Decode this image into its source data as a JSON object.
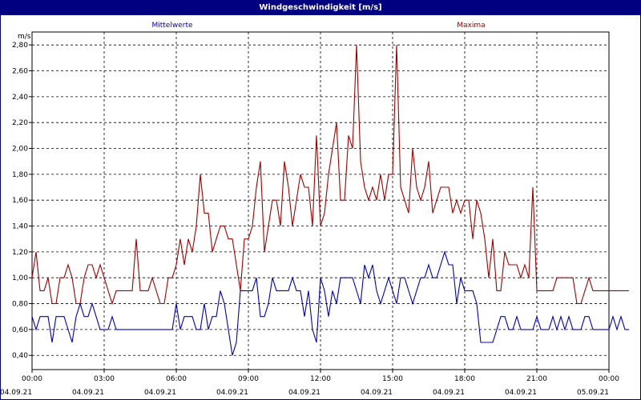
{
  "window": {
    "title": "Windgeschwindigkeit [m/s]"
  },
  "chart_data": {
    "type": "line",
    "title": "Windgeschwindigkeit [m/s]",
    "ylabel": "m/s",
    "xlabel": "",
    "ylim": [
      0.29,
      2.9
    ],
    "yticks": [
      0.4,
      0.6,
      0.8,
      1.0,
      1.2,
      1.4,
      1.6,
      1.8,
      2.0,
      2.2,
      2.4,
      2.6,
      2.8
    ],
    "ytick_labels": [
      "0,40",
      "0,60",
      "0,80",
      "1,00",
      "1,20",
      "1,40",
      "1,60",
      "1,80",
      "2,00",
      "2,20",
      "2,40",
      "2,60",
      "2,80"
    ],
    "xlim_hours": [
      0,
      24
    ],
    "xticks": [
      {
        "hour": 0,
        "time": "00:00",
        "date": "04.09.21"
      },
      {
        "hour": 3,
        "time": "03:00",
        "date": "04.09.21"
      },
      {
        "hour": 6,
        "time": "06:00",
        "date": "04.09.21"
      },
      {
        "hour": 9,
        "time": "09:00",
        "date": "04.09.21"
      },
      {
        "hour": 12,
        "time": "12:00",
        "date": "04.09.21"
      },
      {
        "hour": 15,
        "time": "15:00",
        "date": "04.09.21"
      },
      {
        "hour": 18,
        "time": "18:00",
        "date": "04.09.21"
      },
      {
        "hour": 21,
        "time": "21:00",
        "date": "04.09.21"
      },
      {
        "hour": 24,
        "time": "00:00",
        "date": "05.09.21"
      }
    ],
    "grid": true,
    "legend_position": "top",
    "interval_minutes": 10,
    "series": [
      {
        "name": "Mittelwerte",
        "color": "#0000c0",
        "values": [
          0.7,
          0.6,
          0.7,
          0.7,
          0.7,
          0.5,
          0.7,
          0.7,
          0.7,
          0.6,
          0.5,
          0.7,
          0.8,
          0.7,
          0.7,
          0.8,
          0.7,
          0.6,
          0.6,
          0.6,
          0.7,
          0.6,
          0.6,
          0.6,
          0.6,
          0.6,
          0.6,
          0.6,
          0.6,
          0.6,
          0.6,
          0.6,
          0.6,
          0.6,
          0.6,
          0.6,
          0.8,
          0.6,
          0.7,
          0.7,
          0.7,
          0.6,
          0.6,
          0.8,
          0.6,
          0.7,
          0.7,
          0.9,
          0.8,
          0.6,
          0.4,
          0.5,
          0.9,
          0.9,
          0.9,
          0.9,
          1.0,
          0.7,
          0.7,
          0.8,
          1.0,
          0.9,
          0.9,
          0.9,
          0.9,
          1.0,
          0.9,
          0.9,
          0.7,
          0.9,
          0.6,
          0.5,
          1.0,
          0.9,
          0.7,
          0.9,
          0.8,
          1.0,
          1.0,
          1.0,
          1.0,
          0.9,
          0.8,
          1.1,
          1.0,
          1.1,
          0.9,
          0.8,
          0.9,
          1.0,
          0.9,
          0.8,
          1.0,
          1.0,
          0.9,
          0.8,
          0.9,
          1.0,
          1.0,
          1.1,
          1.0,
          1.0,
          1.1,
          1.2,
          1.1,
          1.1,
          0.8,
          1.0,
          0.9,
          0.9,
          0.9,
          0.8,
          0.5,
          0.5,
          0.5,
          0.5,
          0.6,
          0.7,
          0.7,
          0.6,
          0.6,
          0.7,
          0.6,
          0.6,
          0.6,
          0.6,
          0.7,
          0.6,
          0.6,
          0.6,
          0.7,
          0.6,
          0.7,
          0.6,
          0.7,
          0.6,
          0.6,
          0.6,
          0.7,
          0.7,
          0.6,
          0.6,
          0.6,
          0.6,
          0.6,
          0.7,
          0.6,
          0.7,
          0.6,
          0.6
        ]
      },
      {
        "name": "Maxima",
        "color": "#a00000",
        "values": [
          1.0,
          1.2,
          0.9,
          0.9,
          1.0,
          0.8,
          0.8,
          1.0,
          1.0,
          1.1,
          1.0,
          0.8,
          0.8,
          1.0,
          1.1,
          1.1,
          1.0,
          1.1,
          1.0,
          0.9,
          0.8,
          0.9,
          0.9,
          0.9,
          0.9,
          0.9,
          1.3,
          0.9,
          0.9,
          0.9,
          1.0,
          0.9,
          0.8,
          0.8,
          1.0,
          1.0,
          1.1,
          1.3,
          1.1,
          1.3,
          1.2,
          1.4,
          1.8,
          1.5,
          1.5,
          1.2,
          1.3,
          1.4,
          1.4,
          1.3,
          1.3,
          1.1,
          0.9,
          1.3,
          1.3,
          1.4,
          1.7,
          1.9,
          1.2,
          1.4,
          1.6,
          1.6,
          1.4,
          1.9,
          1.7,
          1.4,
          1.6,
          1.8,
          1.7,
          1.7,
          1.4,
          2.1,
          1.4,
          1.5,
          1.8,
          2.0,
          2.2,
          1.6,
          1.6,
          2.1,
          2.0,
          2.8,
          1.9,
          1.7,
          1.6,
          1.7,
          1.6,
          1.8,
          1.6,
          1.8,
          1.8,
          2.8,
          1.7,
          1.6,
          1.5,
          2.0,
          1.7,
          1.6,
          1.7,
          1.9,
          1.5,
          1.6,
          1.7,
          1.7,
          1.7,
          1.5,
          1.6,
          1.5,
          1.6,
          1.6,
          1.3,
          1.6,
          1.5,
          1.3,
          1.0,
          1.3,
          0.9,
          0.9,
          1.2,
          1.1,
          1.1,
          1.1,
          1.0,
          1.1,
          1.0,
          1.7,
          0.9,
          0.9,
          0.9,
          0.9,
          0.9,
          1.0,
          1.0,
          1.0,
          1.0,
          1.0,
          0.8,
          0.8,
          0.9,
          1.0,
          0.9,
          0.9,
          0.9,
          0.9,
          0.9,
          0.9,
          0.9,
          0.9,
          0.9,
          0.9
        ]
      }
    ]
  }
}
